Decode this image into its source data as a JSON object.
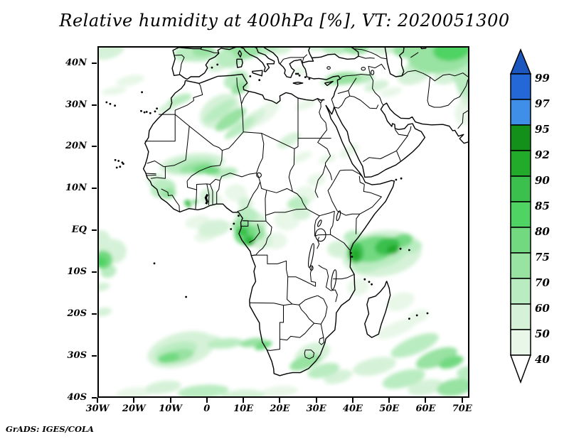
{
  "title": "Relative humidity at 400hPa [%], VT: 2020051300",
  "footer": "GrADS: IGES/COLA",
  "chart_data": {
    "type": "heatmap",
    "subtype": "shaded-contour-map",
    "variable": "Relative humidity",
    "level": "400hPa",
    "units": "%",
    "valid_time": "2020051300",
    "map_extent": {
      "lon_min": -30,
      "lon_max": 72,
      "lat_min": -40,
      "lat_max": 44
    },
    "grid": false,
    "x_ticks": [
      {
        "label": "30W",
        "lon": -30
      },
      {
        "label": "20W",
        "lon": -20
      },
      {
        "label": "10W",
        "lon": -10
      },
      {
        "label": "0",
        "lon": 0
      },
      {
        "label": "10E",
        "lon": 10
      },
      {
        "label": "20E",
        "lon": 20
      },
      {
        "label": "30E",
        "lon": 30
      },
      {
        "label": "40E",
        "lon": 40
      },
      {
        "label": "50E",
        "lon": 50
      },
      {
        "label": "60E",
        "lon": 60
      },
      {
        "label": "70E",
        "lon": 70
      }
    ],
    "y_ticks": [
      {
        "label": "40N",
        "lat": 40
      },
      {
        "label": "30N",
        "lat": 30
      },
      {
        "label": "20N",
        "lat": 20
      },
      {
        "label": "10N",
        "lat": 10
      },
      {
        "label": "EQ",
        "lat": 0
      },
      {
        "label": "10S",
        "lat": -10
      },
      {
        "label": "20S",
        "lat": -20
      },
      {
        "label": "30S",
        "lat": -30
      },
      {
        "label": "40S",
        "lat": -40
      }
    ],
    "colorbar": {
      "position": "right",
      "levels": [
        40,
        50,
        60,
        70,
        75,
        80,
        85,
        90,
        92,
        95,
        97,
        99
      ],
      "colors": [
        "#e8f7e8",
        "#d5f2d8",
        "#baecc1",
        "#98e2a2",
        "#72d981",
        "#4fd363",
        "#3bc04d",
        "#22aa2a",
        "#129019",
        "#3f8fe8",
        "#2468d8"
      ],
      "over_color": "#1c57c0",
      "under_color": "#ffffff"
    },
    "shading": [
      [
        -27,
        42.8,
        4.5,
        1.8,
        -15,
        55
      ],
      [
        -21,
        35.8,
        4,
        1.2,
        -12,
        45
      ],
      [
        -25.5,
        33.3,
        3.5,
        0.9,
        -8,
        45
      ],
      [
        -3,
        42.3,
        6,
        2,
        0,
        65
      ],
      [
        -1,
        42.8,
        3,
        1.2,
        -5,
        72
      ],
      [
        -6.5,
        41.5,
        2.5,
        1.2,
        0,
        55
      ],
      [
        3,
        39.5,
        3,
        1.5,
        -20,
        55
      ],
      [
        6.5,
        41.3,
        4,
        2.5,
        -10,
        65
      ],
      [
        7,
        43.8,
        2.5,
        1,
        0,
        72
      ],
      [
        11,
        43,
        4,
        2,
        -10,
        72
      ],
      [
        16,
        43.5,
        4,
        1.5,
        -15,
        65
      ],
      [
        20.5,
        43.5,
        3,
        1.5,
        -15,
        55
      ],
      [
        8,
        36,
        3.5,
        2,
        -25,
        65
      ],
      [
        9,
        34,
        2.5,
        1.3,
        -30,
        72
      ],
      [
        3.5,
        28.5,
        6,
        3.5,
        -35,
        55
      ],
      [
        3.5,
        28.5,
        5,
        1.4,
        -35,
        65
      ],
      [
        6.5,
        26.5,
        5,
        1.5,
        -35,
        72
      ],
      [
        9,
        24.5,
        5,
        1.2,
        -35,
        65
      ],
      [
        12,
        26,
        5,
        1.5,
        -40,
        55
      ],
      [
        16,
        28,
        5,
        1.8,
        -40,
        45
      ],
      [
        -7.5,
        31.2,
        3.5,
        1.1,
        -20,
        65
      ],
      [
        -10.5,
        29.5,
        3,
        1,
        -25,
        55
      ],
      [
        -4,
        15.8,
        9,
        2.6,
        -6,
        55
      ],
      [
        -4,
        15.5,
        7,
        1.8,
        -6,
        65
      ],
      [
        -3,
        15,
        4.5,
        1.2,
        -10,
        72
      ],
      [
        -1,
        14.6,
        3,
        1,
        -10,
        77
      ],
      [
        1.5,
        14.2,
        2.2,
        0.9,
        -10,
        77
      ],
      [
        5,
        13.8,
        3.5,
        1.2,
        -8,
        65
      ],
      [
        -12,
        10,
        3.5,
        2.2,
        -15,
        65
      ],
      [
        -10.5,
        8.8,
        2,
        1.3,
        -15,
        72
      ],
      [
        -14,
        12,
        2.5,
        1.5,
        -15,
        55
      ],
      [
        -5.3,
        6.6,
        0.9,
        0.7,
        0,
        87
      ],
      [
        -4.9,
        5.9,
        0.5,
        0.45,
        0,
        91
      ],
      [
        -3.2,
        6.8,
        0.8,
        0.6,
        0,
        77
      ],
      [
        0.5,
        8,
        2.5,
        2,
        0,
        55
      ],
      [
        2.5,
        7,
        2,
        1.5,
        0,
        45
      ],
      [
        8,
        9,
        3,
        2,
        0,
        45
      ],
      [
        10.5,
        6.5,
        2,
        1.5,
        0,
        55
      ],
      [
        11,
        3.5,
        3,
        2,
        0,
        65
      ],
      [
        9.5,
        1,
        2.5,
        2,
        0,
        72
      ],
      [
        10.5,
        -1,
        3,
        2.5,
        0,
        77
      ],
      [
        9.8,
        -0.3,
        1.6,
        1.1,
        0,
        87
      ],
      [
        11.6,
        -2.4,
        1.7,
        1.3,
        0,
        87
      ],
      [
        11.9,
        -2.8,
        0.9,
        0.8,
        0,
        91
      ],
      [
        13.5,
        -0.5,
        2.5,
        2,
        0,
        72
      ],
      [
        12.5,
        1.5,
        4,
        3,
        0,
        55
      ],
      [
        15,
        -2.5,
        3,
        2,
        0,
        55
      ],
      [
        2,
        0.5,
        4.5,
        2,
        -10,
        55
      ],
      [
        -2.5,
        2,
        3.5,
        1.5,
        -10,
        45
      ],
      [
        -0.5,
        -1.5,
        3,
        1.2,
        -10,
        45
      ],
      [
        19,
        -2.5,
        3,
        2,
        0,
        45
      ],
      [
        22,
        2.5,
        3.5,
        2.5,
        0,
        45
      ],
      [
        26,
        4,
        2.5,
        1.5,
        0,
        55
      ],
      [
        25,
        6.5,
        3,
        1.5,
        -10,
        65
      ],
      [
        27,
        8.5,
        3,
        2,
        0,
        45
      ],
      [
        30,
        12,
        2.5,
        1.5,
        -15,
        45
      ],
      [
        22.5,
        21.5,
        3.5,
        1.3,
        -30,
        55
      ],
      [
        26,
        17.5,
        3,
        1,
        -25,
        45
      ],
      [
        33,
        17,
        2.5,
        1,
        -20,
        45
      ],
      [
        27,
        30,
        3,
        1,
        -20,
        45
      ],
      [
        48,
        -5.5,
        11,
        5.5,
        -8,
        55
      ],
      [
        46.5,
        -5,
        8.5,
        4,
        -8,
        65
      ],
      [
        45.5,
        -4.5,
        6.5,
        3,
        -10,
        77
      ],
      [
        40.8,
        -5.3,
        2.2,
        2.6,
        0,
        87
      ],
      [
        40.8,
        -5.8,
        1.2,
        1.4,
        0,
        91
      ],
      [
        49.5,
        -3.8,
        3.5,
        2,
        -15,
        87
      ],
      [
        51,
        -4.6,
        1.8,
        1.1,
        -15,
        91
      ],
      [
        53.5,
        -2.5,
        3,
        1.6,
        -15,
        77
      ],
      [
        56,
        -4,
        3,
        1.5,
        -15,
        65
      ],
      [
        44,
        -8,
        4,
        2,
        -10,
        65
      ],
      [
        40,
        -1.5,
        2.5,
        1.5,
        -10,
        65
      ],
      [
        36,
        -4.5,
        3,
        2,
        0,
        55
      ],
      [
        41.5,
        -13.5,
        3,
        2,
        -10,
        45
      ],
      [
        64,
        42,
        9,
        4.5,
        -5,
        72
      ],
      [
        67,
        43,
        5,
        2.5,
        -5,
        82
      ],
      [
        69.5,
        43.5,
        3,
        1.5,
        -5,
        77
      ],
      [
        60,
        40,
        5,
        2.5,
        -10,
        65
      ],
      [
        55,
        43,
        4,
        1.8,
        0,
        72
      ],
      [
        57,
        37.5,
        5,
        2.5,
        -20,
        55
      ],
      [
        70,
        38,
        3,
        3.5,
        0,
        65
      ],
      [
        71,
        37,
        3,
        5,
        0,
        65
      ],
      [
        71.5,
        33,
        2.5,
        3,
        0,
        55
      ],
      [
        70.5,
        28,
        2.5,
        3,
        0,
        45
      ],
      [
        66,
        37,
        4,
        2,
        -15,
        55
      ],
      [
        48.5,
        43.5,
        4,
        1.5,
        0,
        55
      ],
      [
        37.5,
        36.3,
        5,
        1.5,
        -5,
        72
      ],
      [
        42,
        36.2,
        4,
        1.2,
        -8,
        65
      ],
      [
        34,
        35.5,
        3,
        1,
        -5,
        55
      ],
      [
        46.5,
        34.5,
        3.5,
        1.2,
        -15,
        55
      ],
      [
        50.5,
        33,
        3,
        1,
        -15,
        45
      ],
      [
        35.5,
        43.5,
        4,
        1.5,
        0,
        65
      ],
      [
        41,
        43.5,
        3.5,
        1.5,
        0,
        72
      ],
      [
        30,
        43.8,
        3,
        1,
        0,
        55
      ],
      [
        25.5,
        38,
        2,
        1,
        0,
        45
      ],
      [
        39,
        19,
        3,
        1.2,
        -30,
        45
      ],
      [
        -28.5,
        -7,
        2.6,
        2.2,
        0,
        77
      ],
      [
        -29,
        -7.5,
        1.5,
        1.2,
        0,
        82
      ],
      [
        -27,
        -9.8,
        2.2,
        1.5,
        -20,
        65
      ],
      [
        -26,
        -5,
        4,
        3,
        0,
        55
      ],
      [
        -29,
        -2,
        2.5,
        2,
        0,
        55
      ],
      [
        -29,
        -13.5,
        2.5,
        1,
        -8,
        55
      ],
      [
        -28.5,
        -19.5,
        2.5,
        1,
        -10,
        55
      ],
      [
        -7,
        -28.5,
        9.5,
        4,
        -15,
        55
      ],
      [
        -8.5,
        -29,
        6,
        2.2,
        -15,
        65
      ],
      [
        -8,
        -30,
        4.5,
        1.5,
        -12,
        72
      ],
      [
        -10.5,
        -30.5,
        3,
        1.2,
        -10,
        77
      ],
      [
        -1,
        -26.5,
        5,
        1.5,
        -5,
        55
      ],
      [
        5,
        -27,
        5,
        1.2,
        -5,
        65
      ],
      [
        12.5,
        -26.8,
        3.5,
        1,
        -10,
        72
      ],
      [
        15.5,
        -27.5,
        2.5,
        0.9,
        -20,
        77
      ],
      [
        27,
        -31.5,
        4.5,
        1.6,
        -20,
        72
      ],
      [
        32,
        -33.5,
        4.5,
        1.6,
        -15,
        65
      ],
      [
        29,
        -29.5,
        5,
        2.5,
        -20,
        55
      ],
      [
        36,
        -35,
        4,
        1.5,
        -15,
        55
      ],
      [
        -1,
        -38.5,
        7,
        1.6,
        -4,
        65
      ],
      [
        -12,
        -37.5,
        5,
        1.5,
        -8,
        55
      ],
      [
        -20,
        -39,
        5,
        1.5,
        -5,
        45
      ],
      [
        10,
        -39.5,
        6,
        1.5,
        -3,
        55
      ],
      [
        20,
        -38.5,
        5,
        1.3,
        -5,
        45
      ],
      [
        52,
        -23.5,
        6,
        1.6,
        -22,
        45
      ],
      [
        57,
        -27.5,
        7,
        2,
        -22,
        65
      ],
      [
        63,
        -30.5,
        6,
        2,
        -20,
        72
      ],
      [
        67,
        -31.5,
        3.5,
        1.3,
        -18,
        77
      ],
      [
        46,
        -32.5,
        6,
        2,
        -12,
        55
      ],
      [
        54,
        -35.5,
        6,
        2,
        -15,
        65
      ],
      [
        60,
        -37.5,
        5,
        1.8,
        -12,
        55
      ],
      [
        68,
        -37.5,
        5,
        2,
        -10,
        72
      ],
      [
        71,
        -34,
        2.5,
        1.5,
        -15,
        65
      ],
      [
        53,
        -17,
        4,
        2,
        -20,
        45
      ],
      [
        58,
        -20.5,
        3,
        1.5,
        -20,
        45
      ]
    ]
  }
}
